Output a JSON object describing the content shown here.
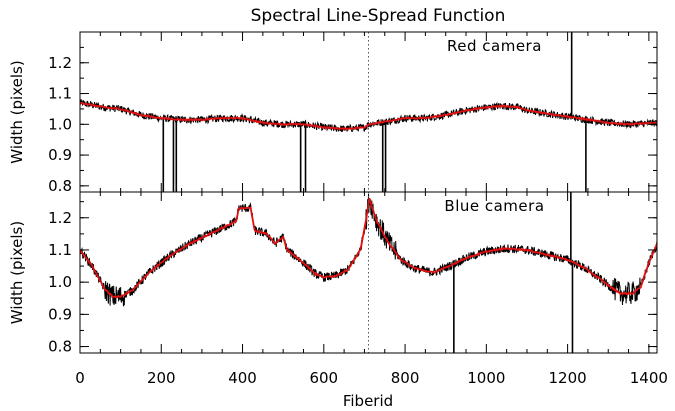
{
  "chart_data": {
    "type": "line",
    "title": "Spectral Line-Spread Function",
    "xlabel": "Fiberid",
    "xlim": [
      0,
      1420
    ],
    "x_ticks": [
      0,
      200,
      400,
      600,
      800,
      1000,
      1200,
      1400
    ],
    "divider_x": 710,
    "colors": {
      "raw": "#000000",
      "smooth": "#e01010",
      "divider": "#555555"
    },
    "panels": [
      {
        "label": "Red camera",
        "ylabel": "Width (pixels)",
        "ylim": [
          0.78,
          1.3
        ],
        "y_ticks": [
          0.8,
          0.9,
          1.0,
          1.1,
          1.2
        ],
        "y_tick_labels": [
          "0.8",
          "0.9",
          "1.0",
          "1.1",
          "1.2"
        ],
        "smooth_points": [
          [
            0,
            1.07
          ],
          [
            60,
            1.055
          ],
          [
            100,
            1.05
          ],
          [
            150,
            1.03
          ],
          [
            200,
            1.02
          ],
          [
            250,
            1.015
          ],
          [
            300,
            1.015
          ],
          [
            350,
            1.02
          ],
          [
            400,
            1.02
          ],
          [
            450,
            1.005
          ],
          [
            500,
            1.0
          ],
          [
            550,
            1.0
          ],
          [
            600,
            0.99
          ],
          [
            650,
            0.985
          ],
          [
            700,
            0.99
          ],
          [
            710,
            1.0
          ],
          [
            760,
            1.01
          ],
          [
            800,
            1.02
          ],
          [
            850,
            1.02
          ],
          [
            900,
            1.03
          ],
          [
            950,
            1.045
          ],
          [
            1000,
            1.055
          ],
          [
            1040,
            1.06
          ],
          [
            1080,
            1.055
          ],
          [
            1100,
            1.045
          ],
          [
            1150,
            1.035
          ],
          [
            1200,
            1.025
          ],
          [
            1250,
            1.015
          ],
          [
            1300,
            1.005
          ],
          [
            1350,
            1.0
          ],
          [
            1420,
            1.005
          ]
        ],
        "spikes": [
          [
            205,
            0.78
          ],
          [
            230,
            0.78
          ],
          [
            237,
            0.78
          ],
          [
            543,
            0.78
          ],
          [
            555,
            0.78
          ],
          [
            745,
            0.78
          ],
          [
            752,
            0.78
          ],
          [
            1210,
            1.3
          ],
          [
            1245,
            0.78
          ]
        ]
      },
      {
        "label": "Blue camera",
        "ylabel": "Width (pixels)",
        "ylim": [
          0.78,
          1.28
        ],
        "y_ticks": [
          0.8,
          0.9,
          1.0,
          1.1,
          1.2
        ],
        "y_tick_labels": [
          "0.8",
          "0.9",
          "1.0",
          "1.1",
          "1.2"
        ],
        "smooth_points": [
          [
            0,
            1.1
          ],
          [
            30,
            1.05
          ],
          [
            60,
            0.98
          ],
          [
            80,
            0.955
          ],
          [
            100,
            0.955
          ],
          [
            130,
            0.975
          ],
          [
            170,
            1.03
          ],
          [
            220,
            1.08
          ],
          [
            270,
            1.12
          ],
          [
            320,
            1.15
          ],
          [
            370,
            1.18
          ],
          [
            385,
            1.19
          ],
          [
            390,
            1.23
          ],
          [
            420,
            1.23
          ],
          [
            430,
            1.16
          ],
          [
            460,
            1.15
          ],
          [
            480,
            1.12
          ],
          [
            500,
            1.14
          ],
          [
            510,
            1.1
          ],
          [
            550,
            1.06
          ],
          [
            580,
            1.025
          ],
          [
            600,
            1.015
          ],
          [
            630,
            1.02
          ],
          [
            660,
            1.04
          ],
          [
            690,
            1.1
          ],
          [
            705,
            1.2
          ],
          [
            712,
            1.26
          ],
          [
            730,
            1.19
          ],
          [
            760,
            1.12
          ],
          [
            790,
            1.07
          ],
          [
            820,
            1.045
          ],
          [
            850,
            1.035
          ],
          [
            870,
            1.03
          ],
          [
            900,
            1.045
          ],
          [
            950,
            1.075
          ],
          [
            1000,
            1.095
          ],
          [
            1050,
            1.105
          ],
          [
            1100,
            1.1
          ],
          [
            1150,
            1.085
          ],
          [
            1200,
            1.07
          ],
          [
            1240,
            1.045
          ],
          [
            1280,
            1.01
          ],
          [
            1300,
            0.99
          ],
          [
            1330,
            0.965
          ],
          [
            1360,
            0.965
          ],
          [
            1380,
            0.985
          ],
          [
            1400,
            1.06
          ],
          [
            1420,
            1.12
          ]
        ],
        "spikes": [
          [
            920,
            0.78
          ],
          [
            1208,
            1.28
          ],
          [
            1212,
            0.78
          ]
        ]
      }
    ]
  }
}
